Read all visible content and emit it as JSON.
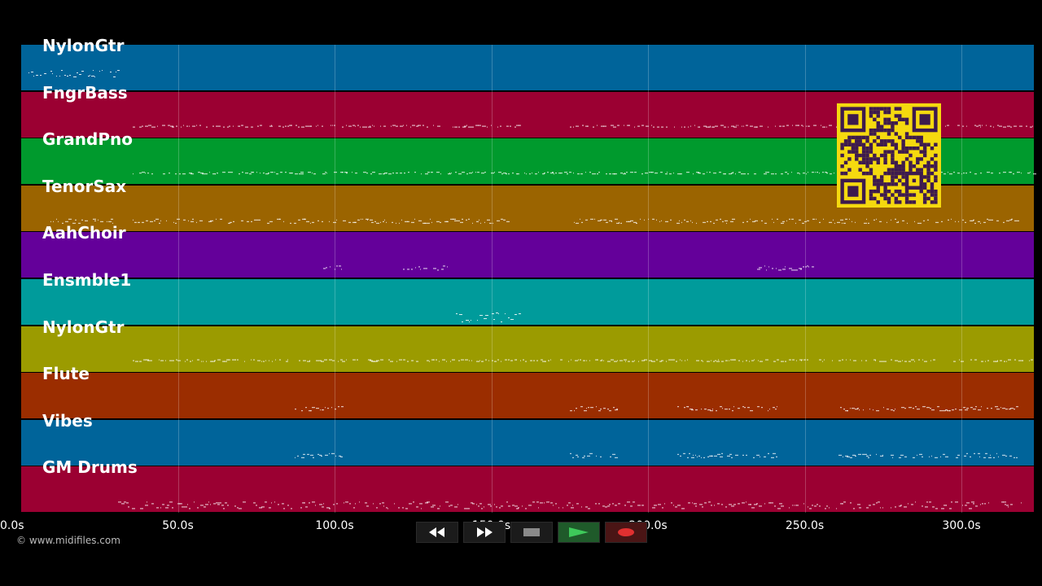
{
  "tracks": [
    {
      "name": "NylonGtr",
      "color": "#00649a"
    },
    {
      "name": "FngrBass",
      "color": "#9b0032"
    },
    {
      "name": "GrandPno",
      "color": "#009a2d"
    },
    {
      "name": "TenorSax",
      "color": "#9b6400"
    },
    {
      "name": "AahChoir",
      "color": "#64009a"
    },
    {
      "name": "Ensmble1",
      "color": "#009b9b"
    },
    {
      "name": "NylonGtr",
      "color": "#9b9b00"
    },
    {
      "name": "Flute",
      "color": "#9b2d00"
    },
    {
      "name": "Vibes",
      "color": "#00649a"
    },
    {
      "name": "GM Drums",
      "color": "#9b0032"
    }
  ],
  "time_axis": {
    "ticks": [
      "0.0s",
      "50.0s",
      "100.0s",
      "150.0s",
      "200.0s",
      "250.0s",
      "300.0s"
    ]
  },
  "copyright": "© www.midifiles.com",
  "transport": {
    "buttons": [
      {
        "icon": "rewind-icon"
      },
      {
        "icon": "fast-forward-icon"
      },
      {
        "icon": "stop-icon"
      },
      {
        "icon": "play-icon"
      },
      {
        "icon": "record-icon"
      }
    ]
  },
  "overlay": {
    "icon": "qr-code-icon",
    "color": "#f5d90f",
    "dark": "#3d1a4e"
  }
}
